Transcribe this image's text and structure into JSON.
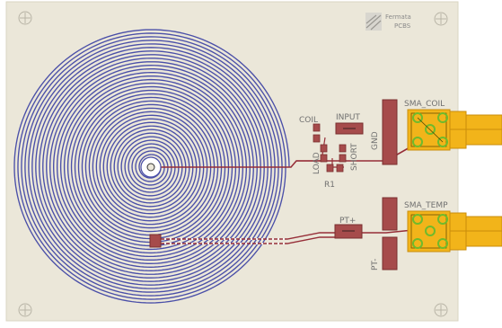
{
  "labels": {
    "sma_coil": "SMA_COIL",
    "sma_temp": "SMA_TEMP",
    "input": "INPUT",
    "coil": "COIL",
    "load": "LOAD",
    "short": "SHORT",
    "gnd": "GND",
    "r1": "R1",
    "pt_plus": "PT+",
    "pt_minus": "PT-"
  },
  "logo": {
    "line1": "Fermata",
    "line2": "PCBS"
  },
  "colors": {
    "board": "#ebe7d9",
    "coil_trace": "#4a4fa8",
    "signal_trace": "#962e38",
    "pad": "#a64b4b",
    "pad_outline": "#7a2f2f",
    "connector": "#f2b41a",
    "connector_dark": "#c98d0b",
    "connector_pin": "#6fba2c",
    "silkscreen": "#707070"
  }
}
